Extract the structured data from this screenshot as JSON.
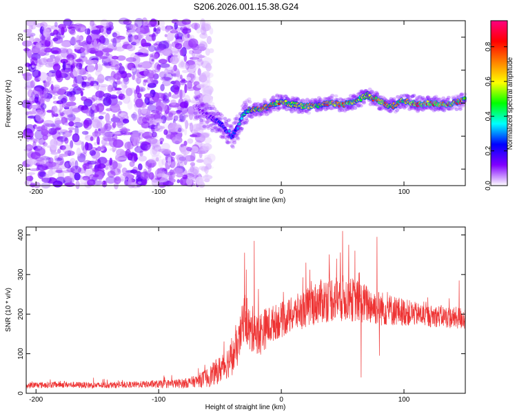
{
  "figure": {
    "title": "S206.2026.001.15.38.G24"
  },
  "chart_data": [
    {
      "type": "heatmap",
      "xlabel": "Height of straight line (km)",
      "ylabel": "Frequency (Hz)",
      "xlim": [
        -208,
        150
      ],
      "ylim": [
        -25,
        25
      ],
      "xticks": [
        -200,
        -100,
        0,
        100
      ],
      "xtick_labels": [
        "-200",
        "-100",
        "0",
        "100"
      ],
      "yticks": [
        -20,
        -10,
        0,
        10,
        20
      ],
      "ytick_labels": [
        "-20",
        "-10",
        "0",
        "10",
        "20"
      ],
      "colorbar": {
        "label": "Normalized spectral amplitude",
        "range": [
          0,
          0.95
        ],
        "ticks": [
          0.0,
          0.2,
          0.4,
          0.6,
          0.8
        ],
        "tick_labels": [
          "0.0",
          "0.2",
          "0.4",
          "0.6",
          "0.8"
        ],
        "colormap": [
          "#ffffff",
          "#8000ff",
          "#0000ff",
          "#00ffff",
          "#00ff00",
          "#ffff00",
          "#ff8000",
          "#ff0000",
          "#ff0080"
        ]
      },
      "noise_region": {
        "x_range": [
          -208,
          -65
        ],
        "y_range": [
          -25,
          25
        ],
        "amplitude_range": [
          0.0,
          0.15
        ]
      },
      "ridge": {
        "x": [
          -70,
          -60,
          -50,
          -45,
          -40,
          -35,
          -30,
          -25,
          -20,
          -10,
          0,
          10,
          20,
          30,
          40,
          50,
          60,
          70,
          80,
          90,
          100,
          110,
          120,
          130,
          140,
          150
        ],
        "frequency": [
          -1,
          -4,
          -6,
          -8,
          -10,
          -7,
          -3,
          -2,
          -2,
          -1,
          0.5,
          -0.5,
          -1,
          -0.5,
          0,
          -0.5,
          0.5,
          2.5,
          0.5,
          -1,
          1,
          -0.5,
          0,
          -0.5,
          0,
          1
        ],
        "amplitude": [
          0.1,
          0.15,
          0.25,
          0.3,
          0.3,
          0.35,
          0.5,
          0.65,
          0.8,
          0.75,
          0.8,
          0.7,
          0.85,
          0.75,
          0.8,
          0.85,
          0.8,
          0.7,
          0.85,
          0.75,
          0.8,
          0.85,
          0.9,
          0.85,
          0.85,
          0.8
        ]
      }
    },
    {
      "type": "line",
      "xlabel": "Height of straight line (km)",
      "ylabel": "SNR (10 * v/v)",
      "xlim": [
        -208,
        150
      ],
      "ylim": [
        0,
        420
      ],
      "xticks": [
        -200,
        -100,
        0,
        100
      ],
      "xtick_labels": [
        "-200",
        "-100",
        "0",
        "100"
      ],
      "yticks": [
        0,
        100,
        200,
        300,
        400
      ],
      "ytick_labels": [
        "0",
        "100",
        "200",
        "300",
        "400"
      ],
      "series": [
        {
          "color": "#ee3333",
          "x": [
            -208,
            -180,
            -150,
            -120,
            -100,
            -80,
            -70,
            -60,
            -50,
            -45,
            -40,
            -35,
            -30,
            -25,
            -22,
            -20,
            -15,
            -10,
            -5,
            0,
            10,
            20,
            30,
            40,
            50,
            60,
            70,
            80,
            90,
            100,
            110,
            120,
            130,
            140,
            150
          ],
          "y": [
            20,
            22,
            20,
            22,
            23,
            25,
            30,
            40,
            60,
            75,
            90,
            120,
            200,
            150,
            170,
            140,
            160,
            170,
            180,
            185,
            200,
            215,
            230,
            240,
            240,
            235,
            225,
            215,
            210,
            205,
            200,
            195,
            195,
            190,
            190
          ],
          "noise": [
            8,
            8,
            8,
            8,
            10,
            12,
            15,
            25,
            35,
            40,
            45,
            50,
            60,
            60,
            60,
            60,
            55,
            50,
            45,
            45,
            45,
            50,
            55,
            60,
            60,
            55,
            50,
            45,
            40,
            35,
            30,
            28,
            28,
            28,
            30
          ],
          "spikes": [
            {
              "x": -30,
              "y": 355
            },
            {
              "x": -22,
              "y": 385
            },
            {
              "x": 20,
              "y": 330
            },
            {
              "x": 45,
              "y": 340
            },
            {
              "x": 50,
              "y": 410
            },
            {
              "x": 55,
              "y": 375
            },
            {
              "x": 60,
              "y": 360
            },
            {
              "x": 78,
              "y": 395
            },
            {
              "x": 65,
              "y": 40
            },
            {
              "x": 80,
              "y": 95
            },
            {
              "x": 145,
              "y": 285
            }
          ]
        }
      ]
    }
  ]
}
